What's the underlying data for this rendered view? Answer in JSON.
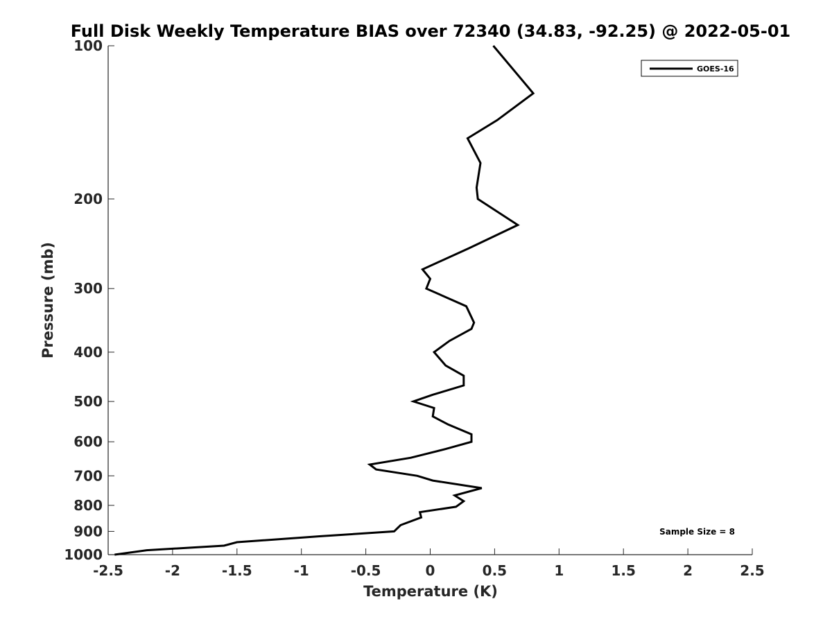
{
  "chart_data": {
    "type": "line",
    "title": "Full Disk Weekly Temperature BIAS over 72340 (34.83, -92.25) @ 2022-05-01",
    "xlabel": "Temperature (K)",
    "ylabel": "Pressure (mb)",
    "xlim": [
      -2.5,
      2.5
    ],
    "ylim": [
      100,
      1000
    ],
    "y_scale": "log",
    "y_reversed": true,
    "grid": false,
    "legend_position": "top-right",
    "xticks": [
      -2.5,
      -2,
      -1.5,
      -1,
      -0.5,
      0,
      0.5,
      1,
      1.5,
      2,
      2.5
    ],
    "xtick_labels": [
      "-2.5",
      "-2",
      "-1.5",
      "-1",
      "-0.5",
      "0",
      "0.5",
      "1",
      "1.5",
      "2",
      "2.5"
    ],
    "yticks": [
      100,
      200,
      300,
      400,
      500,
      600,
      700,
      800,
      900,
      1000
    ],
    "ytick_labels": [
      "100",
      "200",
      "300",
      "400",
      "500",
      "600",
      "700",
      "800",
      "900",
      "1000"
    ],
    "series": [
      {
        "name": "GOES-16",
        "color": "#000000",
        "points": [
          [
            0.49,
            100
          ],
          [
            0.8,
            124
          ],
          [
            0.52,
            140
          ],
          [
            0.29,
            152
          ],
          [
            0.39,
            170
          ],
          [
            0.36,
            190
          ],
          [
            0.37,
            200
          ],
          [
            0.68,
            225
          ],
          [
            0.3,
            250
          ],
          [
            -0.06,
            275
          ],
          [
            0.0,
            287
          ],
          [
            -0.03,
            300
          ],
          [
            0.28,
            325
          ],
          [
            0.34,
            350
          ],
          [
            0.32,
            360
          ],
          [
            0.15,
            380
          ],
          [
            0.03,
            400
          ],
          [
            0.12,
            425
          ],
          [
            0.26,
            445
          ],
          [
            0.26,
            465
          ],
          [
            0.02,
            485
          ],
          [
            -0.13,
            500
          ],
          [
            0.03,
            515
          ],
          [
            0.02,
            535
          ],
          [
            0.14,
            555
          ],
          [
            0.32,
            580
          ],
          [
            0.32,
            600
          ],
          [
            0.12,
            620
          ],
          [
            -0.15,
            645
          ],
          [
            -0.47,
            665
          ],
          [
            -0.42,
            680
          ],
          [
            -0.1,
            700
          ],
          [
            0.02,
            715
          ],
          [
            0.4,
            740
          ],
          [
            0.19,
            765
          ],
          [
            0.26,
            785
          ],
          [
            0.2,
            805
          ],
          [
            -0.08,
            825
          ],
          [
            -0.07,
            845
          ],
          [
            -0.23,
            875
          ],
          [
            -0.28,
            900
          ],
          [
            -0.85,
            920
          ],
          [
            -1.5,
            945
          ],
          [
            -1.6,
            960
          ],
          [
            -2.2,
            980
          ],
          [
            -2.45,
            1000
          ]
        ]
      }
    ],
    "annotations": [
      "Sample Size = 8"
    ]
  }
}
